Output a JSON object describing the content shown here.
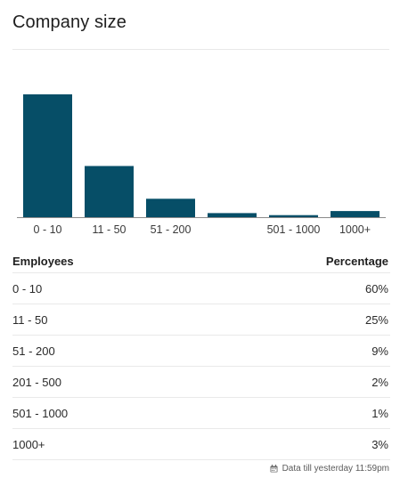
{
  "card": {
    "title": "Company size"
  },
  "chart_data": {
    "type": "bar",
    "categories": [
      "0 - 10",
      "11 - 50",
      "51 - 200",
      "201 - 500",
      "501 - 1000",
      "1000+"
    ],
    "x_tick_labels": [
      "0 - 10",
      "11 - 50",
      "51 - 200",
      "",
      "501 - 1000",
      "1000+"
    ],
    "values": [
      60,
      25,
      9,
      2,
      1,
      3
    ],
    "ylim": [
      0,
      60
    ],
    "bar_color": "#064e67",
    "axis_color": "#8a8a8a",
    "grid": false,
    "title": "",
    "xlabel": "",
    "ylabel": ""
  },
  "table": {
    "headers": {
      "employees": "Employees",
      "percentage": "Percentage"
    },
    "rows": [
      {
        "employees": "0 - 10",
        "percentage": "60%"
      },
      {
        "employees": "11 - 50",
        "percentage": "25%"
      },
      {
        "employees": "51 - 200",
        "percentage": "9%"
      },
      {
        "employees": "201 - 500",
        "percentage": "2%"
      },
      {
        "employees": "501 - 1000",
        "percentage": "1%"
      },
      {
        "employees": "1000+",
        "percentage": "3%"
      }
    ]
  },
  "footer": {
    "icon": "calendar-icon",
    "text": "Data till yesterday 11:59pm"
  }
}
